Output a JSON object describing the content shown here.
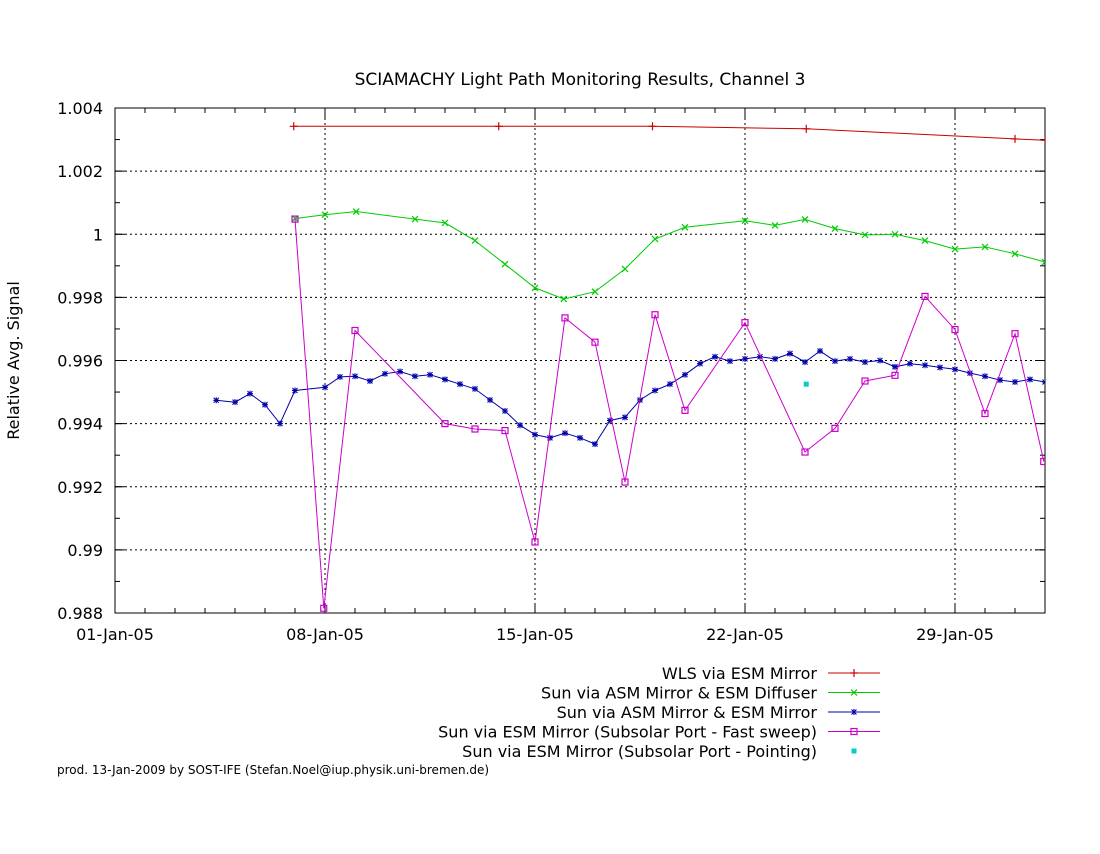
{
  "chart_data": {
    "type": "line",
    "title": "SCIAMACHY Light Path Monitoring Results, Channel 3",
    "xlabel": "",
    "ylabel": "Relative Avg. Signal",
    "x_start": "2005-01-01",
    "x_ticks": [
      "01-Jan-05",
      "08-Jan-05",
      "15-Jan-05",
      "22-Jan-05",
      "29-Jan-05"
    ],
    "y_ticks": [
      "0.988",
      "0.99",
      "0.992",
      "0.994",
      "0.996",
      "0.998",
      "1",
      "1.002",
      "1.004"
    ],
    "xlim": [
      "2005-01-01",
      "2005-02-01"
    ],
    "ylim": [
      0.988,
      1.004
    ],
    "grid": true,
    "legend_position": "bottom-right",
    "series": [
      {
        "name": "WLS via ESM Mirror",
        "color": "#cc0000",
        "marker": "plus",
        "points": [
          [
            "2005-01-06 23:00",
            1.00342
          ],
          [
            "2005-01-13 19:00",
            1.00342
          ],
          [
            "2005-01-18 22:00",
            1.00342
          ],
          [
            "2005-01-24 01:00",
            1.00334
          ],
          [
            "2005-01-31 00:00",
            1.00302
          ],
          [
            "2005-02-01 00:00",
            1.00298
          ]
        ]
      },
      {
        "name": "Sun via ASM Mirror & ESM Diffuser",
        "color": "#00cc00",
        "marker": "x",
        "points": [
          [
            "2005-01-07 00:00",
            1.0005
          ],
          [
            "2005-01-08 00:00",
            1.00062
          ],
          [
            "2005-01-09 01:00",
            1.00072
          ],
          [
            "2005-01-11 00:00",
            1.00048
          ],
          [
            "2005-01-12 00:00",
            1.00036
          ],
          [
            "2005-01-13 00:00",
            0.9998
          ],
          [
            "2005-01-14 00:00",
            0.99905
          ],
          [
            "2005-01-15 00:00",
            0.9983
          ],
          [
            "2005-01-15 23:00",
            0.99795
          ],
          [
            "2005-01-17 00:00",
            0.99818
          ],
          [
            "2005-01-18 00:00",
            0.9989
          ],
          [
            "2005-01-19 00:00",
            0.99985
          ],
          [
            "2005-01-20 00:00",
            1.00022
          ],
          [
            "2005-01-22 00:00",
            1.00043
          ],
          [
            "2005-01-23 00:00",
            1.00028
          ],
          [
            "2005-01-24 00:00",
            1.00047
          ],
          [
            "2005-01-25 00:00",
            1.00018
          ],
          [
            "2005-01-26 00:00",
            0.99998
          ],
          [
            "2005-01-27 00:00",
            1.0
          ],
          [
            "2005-01-28 00:00",
            0.9998
          ],
          [
            "2005-01-29 00:00",
            0.99953
          ],
          [
            "2005-01-30 00:00",
            0.9996
          ],
          [
            "2005-01-31 00:00",
            0.99938
          ],
          [
            "2005-02-01 00:00",
            0.99912
          ]
        ]
      },
      {
        "name": "Sun via ASM Mirror & ESM Mirror",
        "color": "#0000aa",
        "marker": "star",
        "points": [
          [
            "2005-01-04 09:00",
            0.99474
          ],
          [
            "2005-01-05 00:00",
            0.99468
          ],
          [
            "2005-01-05 12:00",
            0.99495
          ],
          [
            "2005-01-06 00:00",
            0.9946
          ],
          [
            "2005-01-06 12:00",
            0.994
          ],
          [
            "2005-01-07 00:00",
            0.99505
          ],
          [
            "2005-01-08 00:00",
            0.99515
          ],
          [
            "2005-01-08 12:00",
            0.99548
          ],
          [
            "2005-01-09 00:00",
            0.9955
          ],
          [
            "2005-01-09 12:00",
            0.99535
          ],
          [
            "2005-01-10 00:00",
            0.99558
          ],
          [
            "2005-01-10 12:00",
            0.99565
          ],
          [
            "2005-01-11 00:00",
            0.9955
          ],
          [
            "2005-01-11 12:00",
            0.99555
          ],
          [
            "2005-01-12 00:00",
            0.9954
          ],
          [
            "2005-01-12 12:00",
            0.99525
          ],
          [
            "2005-01-13 00:00",
            0.9951
          ],
          [
            "2005-01-13 12:00",
            0.99475
          ],
          [
            "2005-01-14 00:00",
            0.9944
          ],
          [
            "2005-01-14 12:00",
            0.99395
          ],
          [
            "2005-01-15 00:00",
            0.99365
          ],
          [
            "2005-01-15 12:00",
            0.99355
          ],
          [
            "2005-01-16 00:00",
            0.9937
          ],
          [
            "2005-01-16 12:00",
            0.99355
          ],
          [
            "2005-01-17 00:00",
            0.99335
          ],
          [
            "2005-01-17 12:00",
            0.9941
          ],
          [
            "2005-01-18 00:00",
            0.9942
          ],
          [
            "2005-01-18 12:00",
            0.99475
          ],
          [
            "2005-01-19 00:00",
            0.99505
          ],
          [
            "2005-01-19 12:00",
            0.99525
          ],
          [
            "2005-01-20 00:00",
            0.99555
          ],
          [
            "2005-01-20 12:00",
            0.9959
          ],
          [
            "2005-01-21 00:00",
            0.99612
          ],
          [
            "2005-01-21 12:00",
            0.99598
          ],
          [
            "2005-01-22 00:00",
            0.99605
          ],
          [
            "2005-01-22 12:00",
            0.99612
          ],
          [
            "2005-01-23 00:00",
            0.99605
          ],
          [
            "2005-01-23 12:00",
            0.99622
          ],
          [
            "2005-01-24 00:00",
            0.99595
          ],
          [
            "2005-01-24 12:00",
            0.9963
          ],
          [
            "2005-01-25 00:00",
            0.99598
          ],
          [
            "2005-01-25 12:00",
            0.99605
          ],
          [
            "2005-01-26 00:00",
            0.99595
          ],
          [
            "2005-01-26 12:00",
            0.996
          ],
          [
            "2005-01-27 00:00",
            0.9958
          ],
          [
            "2005-01-27 12:00",
            0.9959
          ],
          [
            "2005-01-28 00:00",
            0.99585
          ],
          [
            "2005-01-28 12:00",
            0.99578
          ],
          [
            "2005-01-29 00:00",
            0.99572
          ],
          [
            "2005-01-29 12:00",
            0.9956
          ],
          [
            "2005-01-30 00:00",
            0.9955
          ],
          [
            "2005-01-30 12:00",
            0.99538
          ],
          [
            "2005-01-31 00:00",
            0.99532
          ],
          [
            "2005-01-31 12:00",
            0.9954
          ],
          [
            "2005-02-01 00:00",
            0.99532
          ]
        ]
      },
      {
        "name": "Sun via ESM Mirror (Subsolar Port - Fast sweep)",
        "color": "#cc00cc",
        "marker": "square",
        "points": [
          [
            "2005-01-07 00:00",
            1.00048
          ],
          [
            "2005-01-07 23:00",
            0.98815
          ],
          [
            "2005-01-09 00:00",
            0.99695
          ],
          [
            "2005-01-12 00:00",
            0.994
          ],
          [
            "2005-01-13 00:00",
            0.99383
          ],
          [
            "2005-01-14 00:00",
            0.99378
          ],
          [
            "2005-01-15 00:00",
            0.99025
          ],
          [
            "2005-01-16 00:00",
            0.99735
          ],
          [
            "2005-01-17 00:00",
            0.99658
          ],
          [
            "2005-01-18 00:00",
            0.99215
          ],
          [
            "2005-01-19 00:00",
            0.99745
          ],
          [
            "2005-01-20 00:00",
            0.99442
          ],
          [
            "2005-01-22 00:00",
            0.9972
          ],
          [
            "2005-01-24 00:00",
            0.9931
          ],
          [
            "2005-01-25 00:00",
            0.99385
          ],
          [
            "2005-01-26 00:00",
            0.99535
          ],
          [
            "2005-01-27 00:00",
            0.99553
          ],
          [
            "2005-01-28 00:00",
            0.99803
          ],
          [
            "2005-01-29 00:00",
            0.99698
          ],
          [
            "2005-01-30 00:00",
            0.99432
          ],
          [
            "2005-01-31 00:00",
            0.99685
          ],
          [
            "2005-01-31 23:00",
            0.9928
          ]
        ]
      },
      {
        "name": "Sun via ESM Mirror (Subsolar Port - Pointing)",
        "color": "#00cccc",
        "marker": "dot",
        "points": [
          [
            "2005-01-24 01:00",
            0.99525
          ]
        ]
      }
    ]
  },
  "footer": "prod. 13-Jan-2009 by SOST-IFE (Stefan.Noel@iup.physik.uni-bremen.de)"
}
